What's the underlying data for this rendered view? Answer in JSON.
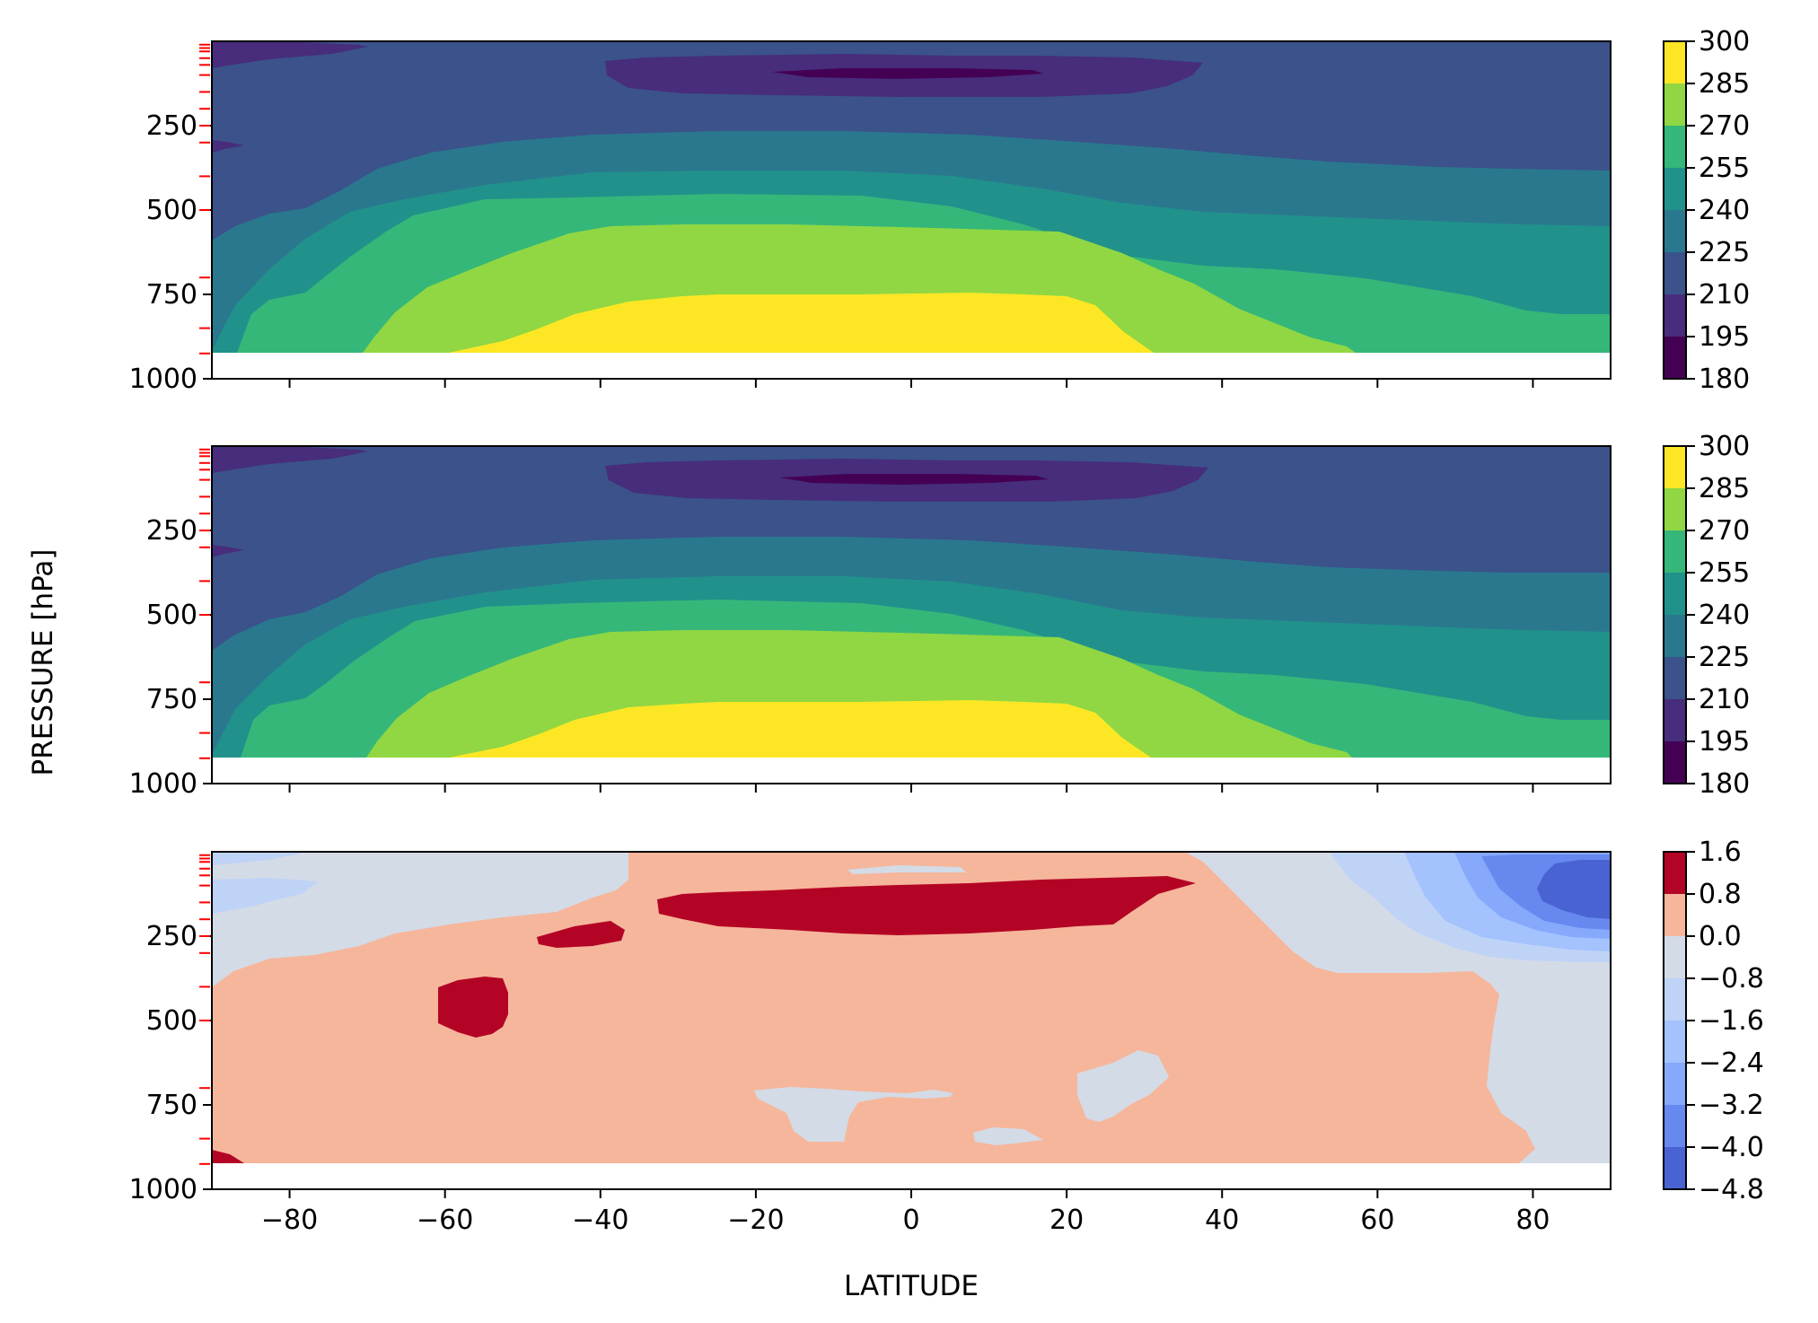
{
  "chart_data": [
    {
      "type": "heatmap",
      "panel": "top",
      "xlim": [
        -90,
        90
      ],
      "ylim": [
        1000,
        0
      ],
      "yticks": [
        "250",
        "500",
        "750",
        "1000"
      ],
      "xticks": [
        -80,
        -60,
        -40,
        -20,
        0,
        20,
        40,
        60,
        80
      ],
      "show_xtick_labels": false,
      "colorbar": {
        "colormap": "viridis",
        "levels": [
          "300",
          "285",
          "270",
          "255",
          "240",
          "225",
          "210",
          "195",
          "180"
        ],
        "colors": [
          "#fde725",
          "#90d743",
          "#35b779",
          "#21918c",
          "#2a788e",
          "#3b528b",
          "#472d7b",
          "#440154"
        ]
      },
      "model_level_markers": [
        10,
        20,
        30,
        50,
        70,
        100,
        150,
        200,
        250,
        300,
        400,
        500,
        700,
        850,
        925
      ],
      "marker_color": "#ff0000"
    },
    {
      "type": "heatmap",
      "panel": "middle",
      "xlim": [
        -90,
        90
      ],
      "ylim": [
        1000,
        0
      ],
      "yticks": [
        "250",
        "500",
        "750",
        "1000"
      ],
      "xticks": [
        -80,
        -60,
        -40,
        -20,
        0,
        20,
        40,
        60,
        80
      ],
      "show_xtick_labels": false,
      "colorbar": {
        "colormap": "viridis",
        "levels": [
          "300",
          "285",
          "270",
          "255",
          "240",
          "225",
          "210",
          "195",
          "180"
        ],
        "colors": [
          "#fde725",
          "#90d743",
          "#35b779",
          "#21918c",
          "#2a788e",
          "#3b528b",
          "#472d7b",
          "#440154"
        ]
      },
      "model_level_markers": [
        10,
        20,
        30,
        50,
        70,
        100,
        150,
        200,
        250,
        300,
        400,
        500,
        700,
        850,
        925
      ],
      "marker_color": "#ff0000"
    },
    {
      "type": "heatmap",
      "panel": "bottom",
      "xlim": [
        -90,
        90
      ],
      "ylim": [
        1000,
        0
      ],
      "yticks": [
        "250",
        "500",
        "750",
        "1000"
      ],
      "xticks": [
        -80,
        -60,
        -40,
        -20,
        0,
        20,
        40,
        60,
        80
      ],
      "xtick_labels": [
        "−80",
        "−60",
        "−40",
        "−20",
        "0",
        "20",
        "40",
        "60",
        "80"
      ],
      "show_xtick_labels": true,
      "colorbar": {
        "colormap": "coolwarm",
        "levels": [
          "1.6",
          "0.8",
          "0.0",
          "−0.8",
          "−1.6",
          "−2.4",
          "−3.2",
          "−4.0",
          "−4.8"
        ],
        "colors": [
          "#b40426",
          "#f6b69b",
          "#d3dbe7",
          "#bfd3f6",
          "#a3c2fe",
          "#86a9fc",
          "#6788ee",
          "#4a63d3"
        ]
      },
      "model_level_markers": [
        10,
        20,
        30,
        50,
        70,
        100,
        150,
        200,
        250,
        300,
        400,
        500,
        700,
        850,
        925
      ],
      "marker_color": "#ff0000"
    }
  ],
  "labels": {
    "xlabel": "LATITUDE",
    "ylabel": "PRESSURE [hPa]"
  }
}
